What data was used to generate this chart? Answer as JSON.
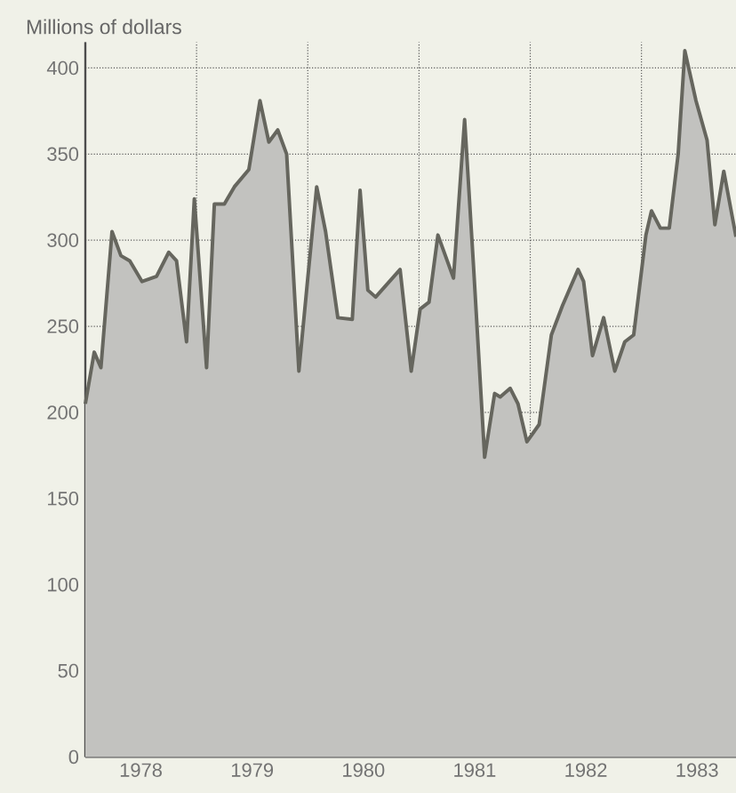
{
  "chart_data": {
    "type": "area",
    "ylabel": "Millions of dollars",
    "x": [
      1978.0,
      1978.08,
      1978.14,
      1978.24,
      1978.32,
      1978.4,
      1978.51,
      1978.64,
      1978.75,
      1978.82,
      1978.91,
      1978.98,
      1979.09,
      1979.16,
      1979.25,
      1979.34,
      1979.47,
      1979.57,
      1979.65,
      1979.73,
      1979.81,
      1979.92,
      1980.0,
      1980.08,
      1980.16,
      1980.27,
      1980.4,
      1980.47,
      1980.54,
      1980.61,
      1980.83,
      1980.93,
      1981.01,
      1981.09,
      1981.17,
      1981.31,
      1981.41,
      1981.49,
      1981.59,
      1981.68,
      1981.73,
      1981.82,
      1981.89,
      1981.97,
      1982.08,
      1982.19,
      1982.29,
      1982.43,
      1982.48,
      1982.56,
      1982.66,
      1982.76,
      1982.85,
      1982.93,
      1983.04,
      1983.09,
      1983.17,
      1983.25,
      1983.33,
      1983.39,
      1983.49,
      1983.59,
      1983.66,
      1983.74,
      1983.85
    ],
    "series": [
      {
        "color": "#66665e",
        "values": [
          205,
          235,
          226,
          305,
          291,
          288,
          276,
          279,
          293,
          288,
          241,
          324,
          226,
          321,
          321,
          331,
          341,
          381,
          357,
          364,
          350,
          224,
          278,
          331,
          305,
          255,
          254,
          329,
          271,
          267,
          283,
          224,
          260,
          264,
          303,
          278,
          370,
          285,
          174,
          211,
          209,
          214,
          205,
          183,
          193,
          245,
          262,
          283,
          276,
          233,
          255,
          224,
          241,
          245,
          303,
          317,
          307,
          307,
          350,
          410,
          381,
          358,
          309,
          340,
          302
        ]
      }
    ],
    "xlim": [
      1978,
      1983.85
    ],
    "ylim": [
      0,
      415
    ],
    "xticks": [
      {
        "value": 1978,
        "label": null
      },
      {
        "value": 1979,
        "label": null
      },
      {
        "value": 1980,
        "label": null
      },
      {
        "value": 1981,
        "label": null
      },
      {
        "value": 1982,
        "label": null
      },
      {
        "value": 1983,
        "label": null
      },
      {
        "value": 1978.5,
        "label": "1978"
      },
      {
        "value": 1979.5,
        "label": "1979"
      },
      {
        "value": 1980.5,
        "label": "1980"
      },
      {
        "value": 1981.5,
        "label": "1981"
      },
      {
        "value": 1982.5,
        "label": "1982"
      },
      {
        "value": 1983.5,
        "label": "1983"
      }
    ],
    "yticks": [
      0,
      50,
      100,
      150,
      200,
      250,
      300,
      350,
      400
    ],
    "grid": true
  }
}
